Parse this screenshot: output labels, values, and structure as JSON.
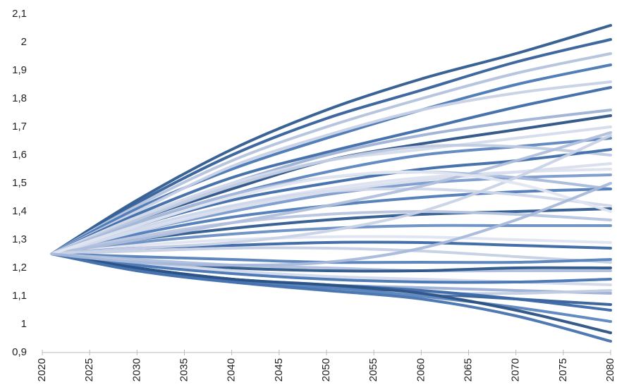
{
  "chart_data": {
    "type": "line",
    "x": [
      2021,
      2030,
      2040,
      2050,
      2060,
      2070,
      2080
    ],
    "xlim": [
      2020,
      2080
    ],
    "xticks": [
      2020,
      2025,
      2030,
      2035,
      2040,
      2045,
      2050,
      2055,
      2060,
      2065,
      2070,
      2075,
      2080
    ],
    "ylim": [
      0.9,
      2.1
    ],
    "yticks": [
      {
        "value": 0.9,
        "label": "0,9"
      },
      1,
      {
        "value": 1.1,
        "label": "1,1"
      },
      {
        "value": 1.2,
        "label": "1,2"
      },
      {
        "value": 1.3,
        "label": "1,3"
      },
      {
        "value": 1.4,
        "label": "1,4"
      },
      {
        "value": 1.5,
        "label": "1,5"
      },
      {
        "value": 1.6,
        "label": "1,6"
      },
      {
        "value": 1.7,
        "label": "1,7"
      },
      {
        "value": 1.8,
        "label": "1,8"
      },
      {
        "value": 1.9,
        "label": "1,9"
      },
      2,
      {
        "value": 2.1,
        "label": "2,1"
      }
    ],
    "grid": false,
    "series": [
      {
        "color": "#2f5b8f",
        "values": [
          1.25,
          1.44,
          1.62,
          1.76,
          1.87,
          1.96,
          2.06
        ]
      },
      {
        "color": "#34609a",
        "values": [
          1.25,
          1.43,
          1.6,
          1.73,
          1.83,
          1.93,
          2.01
        ]
      },
      {
        "color": "#b4c2dc",
        "values": [
          1.25,
          1.42,
          1.58,
          1.7,
          1.8,
          1.89,
          1.96
        ]
      },
      {
        "color": "#4a78b5",
        "values": [
          1.25,
          1.41,
          1.55,
          1.66,
          1.76,
          1.85,
          1.92
        ]
      },
      {
        "color": "#c8d1e6",
        "values": [
          1.25,
          1.4,
          1.56,
          1.67,
          1.76,
          1.82,
          1.86
        ]
      },
      {
        "color": "#3d6aa8",
        "values": [
          1.25,
          1.39,
          1.52,
          1.61,
          1.69,
          1.77,
          1.84
        ]
      },
      {
        "color": "#9fb2d6",
        "values": [
          1.25,
          1.38,
          1.5,
          1.6,
          1.67,
          1.72,
          1.76
        ]
      },
      {
        "color": "#2c5386",
        "values": [
          1.25,
          1.37,
          1.48,
          1.58,
          1.64,
          1.69,
          1.74
        ]
      },
      {
        "color": "#d4dbeb",
        "values": [
          1.25,
          1.38,
          1.5,
          1.58,
          1.62,
          1.66,
          1.7
        ]
      },
      {
        "color": "#5c86bf",
        "values": [
          1.25,
          1.36,
          1.46,
          1.54,
          1.6,
          1.63,
          1.66
        ]
      },
      {
        "color": "#c0cbe2",
        "values": [
          1.25,
          1.37,
          1.49,
          1.58,
          1.63,
          1.63,
          1.6
        ]
      },
      {
        "color": "#3f6ca9",
        "values": [
          1.25,
          1.35,
          1.44,
          1.5,
          1.55,
          1.58,
          1.62
        ]
      },
      {
        "color": "#dde2ef",
        "values": [
          1.25,
          1.34,
          1.42,
          1.48,
          1.52,
          1.54,
          1.55
        ]
      },
      {
        "color": "#7b9bcc",
        "values": [
          1.25,
          1.33,
          1.4,
          1.46,
          1.5,
          1.52,
          1.53
        ]
      },
      {
        "color": "#a9badb",
        "values": [
          1.25,
          1.36,
          1.46,
          1.52,
          1.54,
          1.52,
          1.48
        ]
      },
      {
        "color": "#4e7bb7",
        "values": [
          1.25,
          1.32,
          1.38,
          1.42,
          1.45,
          1.47,
          1.48
        ]
      },
      {
        "color": "#cfd7ea",
        "values": [
          1.25,
          1.34,
          1.42,
          1.47,
          1.48,
          1.46,
          1.42
        ]
      },
      {
        "color": "#2f5a8f",
        "values": [
          1.25,
          1.3,
          1.34,
          1.37,
          1.39,
          1.4,
          1.41
        ]
      },
      {
        "color": "#b8c5df",
        "values": [
          1.25,
          1.31,
          1.36,
          1.39,
          1.4,
          1.39,
          1.37
        ]
      },
      {
        "color": "#6a8fc5",
        "values": [
          1.25,
          1.29,
          1.32,
          1.34,
          1.35,
          1.35,
          1.35
        ]
      },
      {
        "color": "#dfe4f0",
        "values": [
          1.25,
          1.28,
          1.3,
          1.31,
          1.31,
          1.3,
          1.29
        ]
      },
      {
        "color": "#3b67a4",
        "values": [
          1.25,
          1.27,
          1.28,
          1.29,
          1.29,
          1.28,
          1.27
        ]
      },
      {
        "color": "#c5cfe5",
        "values": [
          1.25,
          1.26,
          1.27,
          1.27,
          1.26,
          1.24,
          1.22
        ]
      },
      {
        "color": "#5581bb",
        "values": [
          1.25,
          1.24,
          1.23,
          1.22,
          1.22,
          1.22,
          1.23
        ]
      },
      {
        "color": "#aebfdd",
        "values": [
          1.25,
          1.23,
          1.21,
          1.2,
          1.19,
          1.19,
          1.19
        ]
      },
      {
        "color": "#2d5588",
        "values": [
          1.25,
          1.22,
          1.2,
          1.19,
          1.19,
          1.2,
          1.2
        ]
      },
      {
        "color": "#d2d9eb",
        "values": [
          1.25,
          1.22,
          1.19,
          1.17,
          1.16,
          1.15,
          1.14
        ]
      },
      {
        "color": "#4674b2",
        "values": [
          1.25,
          1.21,
          1.18,
          1.16,
          1.15,
          1.15,
          1.16
        ]
      },
      {
        "color": "#9cb0d5",
        "values": [
          1.25,
          1.2,
          1.16,
          1.14,
          1.13,
          1.12,
          1.11
        ]
      },
      {
        "color": "#335f98",
        "values": [
          1.25,
          1.2,
          1.16,
          1.13,
          1.11,
          1.09,
          1.07
        ]
      },
      {
        "color": "#c2cce3",
        "values": [
          1.25,
          1.19,
          1.15,
          1.12,
          1.11,
          1.11,
          1.12
        ]
      },
      {
        "color": "#3a67a6",
        "values": [
          1.25,
          1.2,
          1.16,
          1.14,
          1.12,
          1.09,
          1.05
        ]
      },
      {
        "color": "#5b85be",
        "values": [
          1.25,
          1.19,
          1.15,
          1.13,
          1.1,
          1.06,
          1.01
        ]
      },
      {
        "color": "#2b5284",
        "values": [
          1.25,
          1.2,
          1.16,
          1.14,
          1.11,
          1.05,
          0.97
        ]
      },
      {
        "color": "#4472ae",
        "values": [
          1.25,
          1.19,
          1.15,
          1.12,
          1.09,
          1.03,
          0.94
        ]
      },
      {
        "color": "#d8deed",
        "values": [
          1.25,
          1.33,
          1.41,
          1.47,
          1.51,
          1.54,
          1.57
        ]
      },
      {
        "color": "#b0bfdc",
        "values": [
          1.25,
          1.3,
          1.36,
          1.42,
          1.49,
          1.58,
          1.68
        ]
      },
      {
        "color": "#c9d2e7",
        "values": [
          1.25,
          1.27,
          1.29,
          1.33,
          1.4,
          1.52,
          1.67
        ]
      },
      {
        "color": "#e2e6f1",
        "values": [
          1.25,
          1.35,
          1.45,
          1.52,
          1.54,
          1.5,
          1.4
        ]
      },
      {
        "color": "#a7b8da",
        "values": [
          1.25,
          1.22,
          1.21,
          1.22,
          1.27,
          1.37,
          1.5
        ]
      }
    ]
  }
}
